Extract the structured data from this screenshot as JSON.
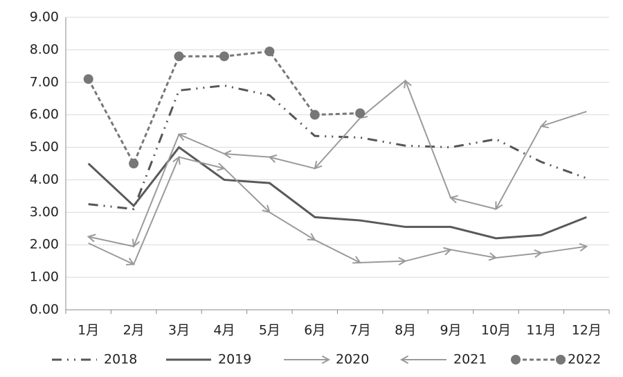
{
  "chart_data": {
    "type": "line",
    "categories": [
      "1月",
      "2月",
      "3月",
      "4月",
      "5月",
      "6月",
      "7月",
      "8月",
      "9月",
      "10月",
      "11月",
      "12月"
    ],
    "series": [
      {
        "name": "2018",
        "color": "#555555",
        "values": [
          3.25,
          3.1,
          6.75,
          6.9,
          6.6,
          5.35,
          5.3,
          5.05,
          5.0,
          5.25,
          4.55,
          4.05
        ]
      },
      {
        "name": "2019",
        "color": "#595959",
        "values": [
          4.5,
          3.2,
          5.0,
          4.0,
          3.9,
          2.85,
          2.75,
          2.55,
          2.55,
          2.2,
          2.3,
          2.85
        ]
      },
      {
        "name": "2020",
        "color": "#9a9a9a",
        "values": [
          2.05,
          1.4,
          4.7,
          4.35,
          3.0,
          2.15,
          1.45,
          1.5,
          1.85,
          1.6,
          1.75,
          1.95
        ]
      },
      {
        "name": "2021",
        "color": "#9a9a9a",
        "values": [
          2.25,
          1.95,
          5.4,
          4.8,
          4.7,
          4.35,
          5.9,
          7.05,
          3.45,
          3.1,
          5.65,
          6.1
        ]
      },
      {
        "name": "2022",
        "color": "#777777",
        "values": [
          7.1,
          4.5,
          7.8,
          7.8,
          7.95,
          6.0,
          6.05,
          null,
          null,
          null,
          null,
          null
        ]
      }
    ],
    "ylim": [
      0,
      9
    ],
    "yticks": [
      {
        "value": 0,
        "label": "0.00"
      },
      {
        "value": 1,
        "label": "1.00"
      },
      {
        "value": 2,
        "label": "2.00"
      },
      {
        "value": 3,
        "label": "3.00"
      },
      {
        "value": 4,
        "label": "4.00"
      },
      {
        "value": 5,
        "label": "5.00"
      },
      {
        "value": 6,
        "label": "6.00"
      },
      {
        "value": 7,
        "label": "7.00"
      },
      {
        "value": 8,
        "label": "8.00"
      },
      {
        "value": 9,
        "label": "9.00"
      }
    ],
    "grid": true,
    "legend": "bottom"
  }
}
